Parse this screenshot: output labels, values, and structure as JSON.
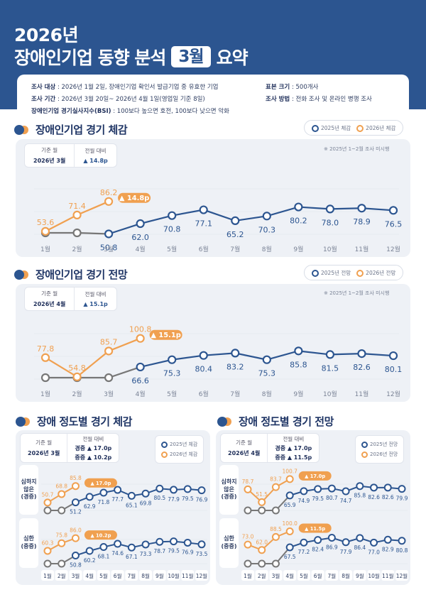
{
  "header": {
    "year": "2026년",
    "title_pre": "장애인기업 동향 분석",
    "title_badge": "3월",
    "title_post": "요약"
  },
  "info": {
    "target_label": "조사 대상",
    "target_value": " : 2026년 1월 2일, 장애인기업 확인서 발급기업 중 유효한 기업",
    "period_label": "조사 기간",
    "period_value": " : 2026년 3월 20일~ 2026년 4월 1일(영업일 기준 8일)",
    "bsi_label": "장애인기업 경기실사지수(BSI)",
    "bsi_value": " : 100보다 높으면 호전, 100보다 낮으면 악화",
    "sample_label": "표본 크기",
    "sample_value": " : 500개사",
    "method_label": "조사 방법",
    "method_value": " : 전화 조사 및 온라인 병행 조사"
  },
  "colors": {
    "primary": "#2c5590",
    "accent": "#f0a050",
    "gray": "#777777",
    "panel": "#eef1f6"
  },
  "chart_data": [
    {
      "type": "line",
      "title": "장애인기업 경기 체감",
      "legend": [
        "2025년 체감",
        "2026년 체감"
      ],
      "legend_position": "top-right",
      "note": "※ 2025년 1~2월 조사 미시행",
      "kpi": {
        "base_label": "기준 월",
        "base_value": "2026년 3월",
        "change_label": "전월 대비",
        "change_value": "▲ 14.8p"
      },
      "delta_badge": "▲ 14.8p",
      "categories": [
        "1월",
        "2월",
        "3월",
        "4월",
        "5월",
        "6월",
        "7월",
        "8월",
        "9월",
        "10월",
        "11월",
        "12월"
      ],
      "series": [
        {
          "name": "2025년 체감",
          "values": [
            null,
            null,
            50.8,
            62.0,
            70.8,
            77.1,
            65.2,
            70.3,
            80.2,
            78.0,
            78.9,
            76.5
          ],
          "labels": [
            "",
            "",
            "50.8",
            "62.0",
            "70.8",
            "77.1",
            "65.2",
            "70.3",
            "80.2",
            "78.0",
            "78.9",
            "76.5"
          ]
        },
        {
          "name": "2026년 체감",
          "values": [
            53.6,
            71.4,
            86.2
          ],
          "labels": [
            "53.6",
            "71.4",
            "86.2"
          ]
        }
      ]
    },
    {
      "type": "line",
      "title": "장애인기업 경기 전망",
      "legend": [
        "2025년 전망",
        "2026년 전망"
      ],
      "legend_position": "top-right",
      "note": "※ 2025년 1~2월 조사 미시행",
      "kpi": {
        "base_label": "기준 월",
        "base_value": "2026년 4월",
        "change_label": "전월 대비",
        "change_value": "▲ 15.1p"
      },
      "delta_badge": "▲ 15.1p",
      "categories": [
        "1월",
        "2월",
        "3월",
        "4월",
        "5월",
        "6월",
        "7월",
        "8월",
        "9월",
        "10월",
        "11월",
        "12월"
      ],
      "series": [
        {
          "name": "2025년 전망",
          "values": [
            null,
            null,
            null,
            66.6,
            75.3,
            80.4,
            83.2,
            75.3,
            85.8,
            81.5,
            82.6,
            80.1
          ],
          "labels": [
            "",
            "",
            "",
            "66.6",
            "75.3",
            "80.4",
            "83.2",
            "75.3",
            "85.8",
            "81.5",
            "82.6",
            "80.1"
          ]
        },
        {
          "name": "2026년 전망",
          "values": [
            77.8,
            54.8,
            85.7,
            100.8
          ],
          "labels": [
            "77.8",
            "54.8",
            "85.7",
            "100.8"
          ]
        }
      ]
    },
    {
      "type": "line",
      "title": "장애 정도별 경기 체감",
      "legend": [
        "2025년 체감",
        "2026년 체감"
      ],
      "kpi": {
        "base_label": "기준 월",
        "base_value": "2026년 3월",
        "change_label": "전월 대비",
        "change_mild": "경증 ▲ 17.0p",
        "change_severe": "중증 ▲ 10.2p"
      },
      "categories": [
        "1월",
        "2월",
        "3월",
        "4월",
        "5월",
        "6월",
        "7월",
        "8월",
        "9월",
        "10월",
        "11월",
        "12월"
      ],
      "groups": [
        {
          "label": "심하지 않은 (경증)",
          "delta_badge": "▲ 17.0p",
          "series": [
            {
              "name": "2025년 체감",
              "values": [
                null,
                null,
                51.2,
                62.9,
                71.8,
                77.7,
                65.1,
                69.8,
                80.5,
                77.9,
                79.5,
                76.9
              ],
              "labels": [
                "",
                "",
                "51.2",
                "62.9",
                "71.8",
                "77.7",
                "65.1",
                "69.8",
                "80.5",
                "77.9",
                "79.5",
                "76.9"
              ]
            },
            {
              "name": "2026년 체감",
              "values": [
                50.7,
                68.8,
                85.8
              ],
              "labels": [
                "50.7",
                "68.8",
                "85.8"
              ]
            }
          ]
        },
        {
          "label": "심한 (중증)",
          "delta_badge": "▲ 10.2p",
          "series": [
            {
              "name": "2025년 체감",
              "values": [
                null,
                null,
                50.8,
                60.2,
                68.1,
                74.6,
                67.1,
                73.3,
                78.7,
                79.5,
                76.9,
                73.5
              ],
              "labels": [
                "",
                "",
                "50.8",
                "60.2",
                "68.1",
                "74.6",
                "67.1",
                "73.3",
                "78.7",
                "79.5",
                "76.9",
                "73.5"
              ]
            },
            {
              "name": "2026년 체감",
              "values": [
                60.3,
                75.8,
                86.0
              ],
              "labels": [
                "60.3",
                "75.8",
                "86.0"
              ]
            }
          ]
        }
      ]
    },
    {
      "type": "line",
      "title": "장애 정도별 경기 전망",
      "legend": [
        "2025년 전망",
        "2026년 전망"
      ],
      "kpi": {
        "base_label": "기준 월",
        "base_value": "2026년 4월",
        "change_label": "전월 대비",
        "change_mild": "경증 ▲ 17.0p",
        "change_severe": "중증 ▲ 11.5p"
      },
      "categories": [
        "1월",
        "2월",
        "3월",
        "4월",
        "5월",
        "6월",
        "7월",
        "8월",
        "9월",
        "10월",
        "11월",
        "12월"
      ],
      "groups": [
        {
          "label": "심하지 않은 (경증)",
          "delta_badge": "▲ 17.0p",
          "series": [
            {
              "name": "2025년 전망",
              "values": [
                null,
                null,
                null,
                65.9,
                74.9,
                79.5,
                80.7,
                74.7,
                85.8,
                82.6,
                82.6,
                79.9
              ],
              "labels": [
                "",
                "",
                "",
                "65.9",
                "74.9",
                "79.5",
                "80.7",
                "74.7",
                "85.8",
                "82.6",
                "82.6",
                "79.9"
              ]
            },
            {
              "name": "2026년 전망",
              "values": [
                78.7,
                51.5,
                83.7,
                100.7
              ],
              "labels": [
                "78.7",
                "51.5",
                "83.7",
                "100.7"
              ]
            }
          ]
        },
        {
          "label": "심한 (중증)",
          "delta_badge": "▲ 11.5p",
          "series": [
            {
              "name": "2025년 전망",
              "values": [
                null,
                null,
                null,
                67.5,
                77.2,
                82.4,
                86.9,
                77.9,
                86.4,
                77.0,
                82.9,
                80.8
              ],
              "labels": [
                "",
                "",
                "",
                "67.5",
                "77.2",
                "82.4",
                "86.9",
                "77.9",
                "86.4",
                "77.0",
                "82.9",
                "80.8"
              ]
            },
            {
              "name": "2026년 전망",
              "values": [
                73.0,
                62.0,
                88.5,
                100.0
              ],
              "labels": [
                "73.0",
                "62.0",
                "88.5",
                "100.0"
              ]
            }
          ]
        }
      ]
    }
  ]
}
